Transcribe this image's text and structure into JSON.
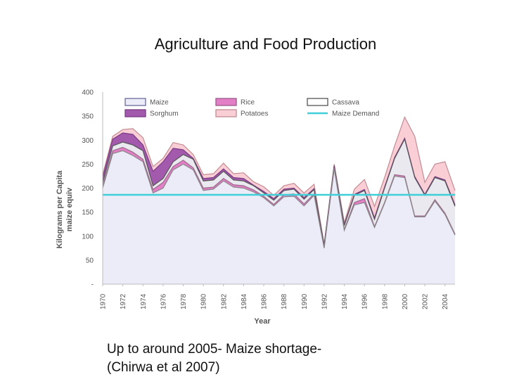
{
  "slide": {
    "title": "Agriculture and Food Production",
    "caption_line1": "Up to around 2005- Maize shortage-",
    "caption_line2": "(Chirwa et al 2007)"
  },
  "chart_data": {
    "type": "area",
    "title": "",
    "xlabel": "Year",
    "ylabel": "Kilograms per Capita maize equiv",
    "ylim": [
      0,
      400
    ],
    "yticks": [
      0,
      50,
      100,
      150,
      200,
      250,
      300,
      350,
      400
    ],
    "ytick_labels": [
      "-",
      "50",
      "100",
      "150",
      "200",
      "250",
      "300",
      "350",
      "400"
    ],
    "xlim": [
      1970,
      2005
    ],
    "xtick_labels": [
      "1970",
      "1972",
      "1974",
      "1976",
      "1978",
      "1980",
      "1982",
      "1984",
      "1986",
      "1988",
      "1990",
      "1992",
      "1994",
      "1996",
      "1998",
      "2000",
      "2002",
      "2004"
    ],
    "x": [
      1970,
      1971,
      1972,
      1973,
      1974,
      1975,
      1976,
      1977,
      1978,
      1979,
      1980,
      1981,
      1982,
      1983,
      1984,
      1985,
      1986,
      1987,
      1988,
      1989,
      1990,
      1991,
      1992,
      1993,
      1994,
      1995,
      1996,
      1997,
      1998,
      1999,
      2000,
      2001,
      2002,
      2003,
      2004,
      2005
    ],
    "series": [
      {
        "name": "Maize",
        "fill": "#ececf9",
        "stroke": "#888888",
        "values": [
          200,
          272,
          278,
          268,
          255,
          190,
          200,
          238,
          250,
          238,
          195,
          198,
          215,
          202,
          200,
          192,
          180,
          163,
          182,
          183,
          163,
          185,
          75,
          240,
          112,
          165,
          170,
          118,
          168,
          225,
          222,
          140,
          140,
          173,
          145,
          102
        ]
      },
      {
        "name": "Rice",
        "fill": "#e27fc6",
        "stroke": "#9a6a8a",
        "values": [
          205,
          278,
          285,
          275,
          260,
          197,
          212,
          245,
          258,
          242,
          200,
          202,
          220,
          207,
          205,
          196,
          183,
          166,
          186,
          188,
          167,
          188,
          76,
          242,
          114,
          170,
          178,
          120,
          170,
          228,
          225,
          142,
          142,
          176,
          148,
          104
        ]
      },
      {
        "name": "Cassava",
        "fill": "#e9e9ef",
        "stroke": "#555555",
        "values": [
          212,
          288,
          296,
          290,
          278,
          205,
          220,
          255,
          270,
          260,
          215,
          217,
          235,
          217,
          215,
          205,
          190,
          175,
          195,
          198,
          177,
          197,
          80,
          245,
          122,
          185,
          195,
          135,
          200,
          262,
          302,
          222,
          185,
          222,
          215,
          162
        ]
      },
      {
        "name": "Sorghum",
        "fill": "#a35aad",
        "stroke": "#7a3a85",
        "values": [
          222,
          302,
          315,
          312,
          290,
          235,
          255,
          283,
          280,
          262,
          220,
          222,
          240,
          222,
          220,
          206,
          193,
          178,
          198,
          200,
          180,
          199,
          82,
          247,
          124,
          187,
          197,
          138,
          202,
          264,
          304,
          224,
          187,
          224,
          217,
          165
        ]
      },
      {
        "name": "Potatoes",
        "fill": "#f9cfd5",
        "stroke": "#c48a93",
        "values": [
          228,
          308,
          322,
          324,
          305,
          245,
          262,
          295,
          290,
          270,
          228,
          230,
          252,
          230,
          232,
          213,
          203,
          185,
          205,
          210,
          190,
          208,
          83,
          250,
          128,
          198,
          218,
          162,
          222,
          288,
          348,
          308,
          212,
          250,
          255,
          195
        ]
      }
    ],
    "reference_line": {
      "name": "Maize Demand",
      "value": 186,
      "color": "#3ecfd8"
    },
    "legend": [
      {
        "name": "Maize",
        "kind": "box",
        "fill": "#ececf9",
        "stroke": "#6a6a9a"
      },
      {
        "name": "Rice",
        "kind": "box",
        "fill": "#e27fc6",
        "stroke": "#9a5a8a"
      },
      {
        "name": "Cassava",
        "kind": "box",
        "fill": "#ffffff",
        "stroke": "#555555"
      },
      {
        "name": "Sorghum",
        "kind": "box",
        "fill": "#a35aad",
        "stroke": "#7a3a85"
      },
      {
        "name": "Potatoes",
        "kind": "box",
        "fill": "#f9cfd5",
        "stroke": "#c48a93"
      },
      {
        "name": "Maize Demand",
        "kind": "line",
        "fill": "#3ecfd8",
        "stroke": "#3ecfd8"
      }
    ],
    "legend_position": "top",
    "grid": false
  }
}
